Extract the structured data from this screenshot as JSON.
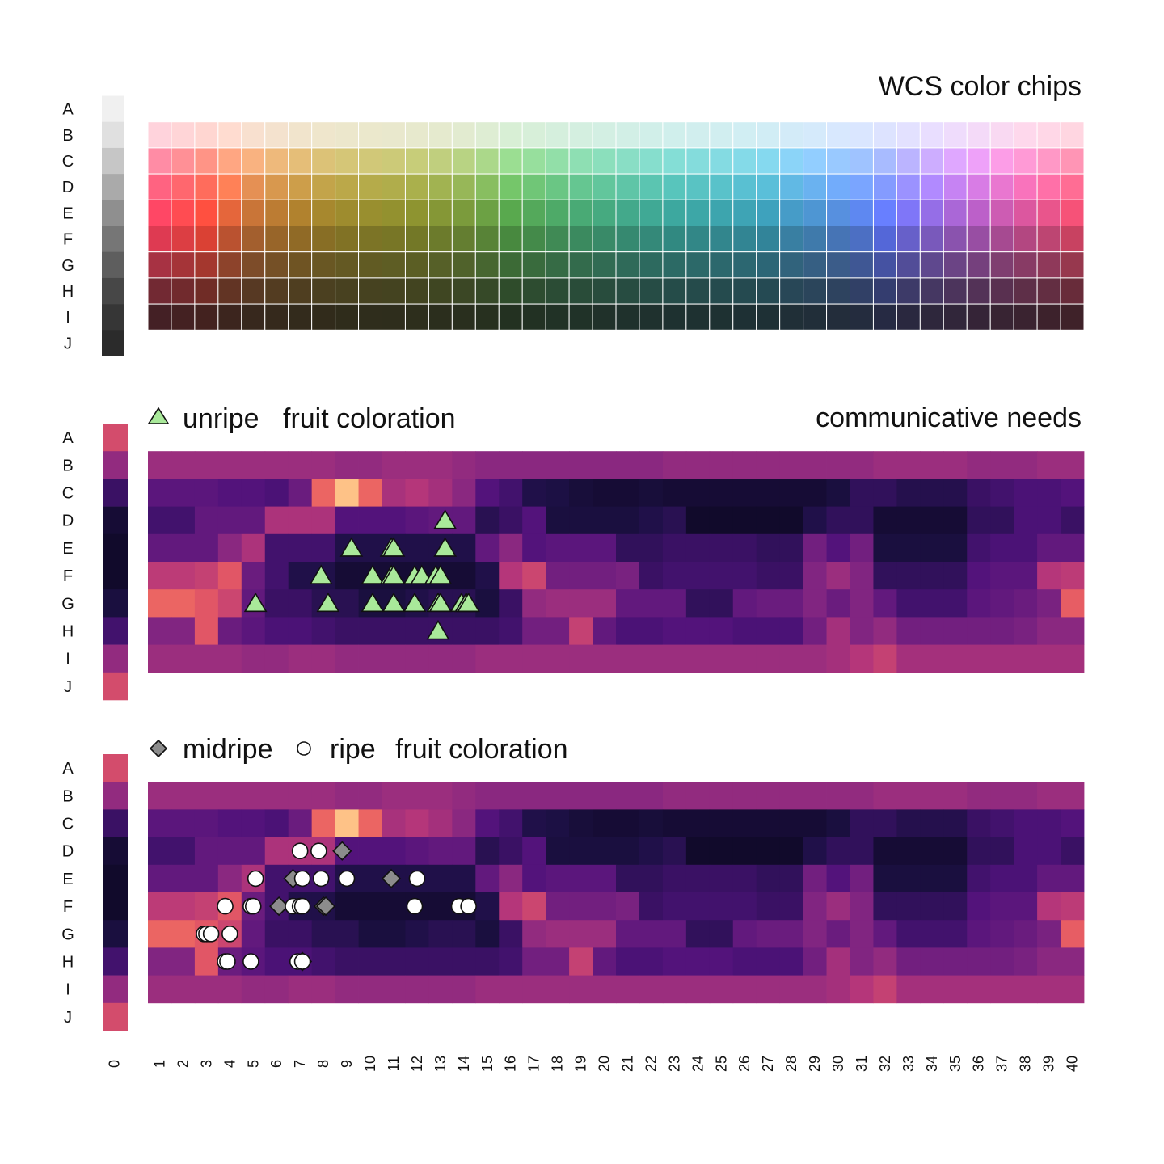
{
  "figure": {
    "panel_titles": {
      "chips": "WCS color chips",
      "needs": "communicative needs"
    },
    "legend_unripe": {
      "label_1": "unripe",
      "label_2": "fruit coloration",
      "marker": "triangle",
      "color": "#a9e99a"
    },
    "legend_ripe": {
      "label_1": "midripe",
      "label_2": "ripe",
      "label_3": "fruit coloration",
      "marker_midripe": "diamond",
      "marker_ripe": "circle",
      "midripe_color": "#8c8c8c",
      "ripe_color": "#ffffff"
    }
  },
  "chart_data": [
    {
      "id": "wcs_chips",
      "type": "heatmap",
      "title": "WCS color chips",
      "rows": [
        "A",
        "B",
        "C",
        "D",
        "E",
        "F",
        "G",
        "H",
        "I",
        "J"
      ],
      "columns": [
        "0",
        "1",
        "2",
        "3",
        "4",
        "5",
        "6",
        "7",
        "8",
        "9",
        "10",
        "11",
        "12",
        "13",
        "14",
        "15",
        "16",
        "17",
        "18",
        "19",
        "20",
        "21",
        "22",
        "23",
        "24",
        "25",
        "26",
        "27",
        "28",
        "29",
        "30",
        "31",
        "32",
        "33",
        "34",
        "35",
        "36",
        "37",
        "38",
        "39",
        "40"
      ],
      "achromatic_column": [
        "#f0f0f0",
        "#e0e0e0",
        "#c6c6c6",
        "#aaaaaa",
        "#8f8f8f",
        "#767676",
        "#5e5e5e",
        "#474747",
        "#363636",
        "#2b2b2b"
      ],
      "hue_stops_by_column": [
        [
          1,
          "#e8213e"
        ],
        [
          3,
          "#e52a1a"
        ],
        [
          5,
          "#e8701a"
        ],
        [
          7,
          "#f2a10f"
        ],
        [
          9,
          "#f2cd10"
        ],
        [
          12,
          "#c8d414"
        ],
        [
          14,
          "#8ec325"
        ],
        [
          16,
          "#45b136"
        ],
        [
          19,
          "#2fb06a"
        ],
        [
          23,
          "#1fb0a4"
        ],
        [
          27,
          "#1fa0c2"
        ],
        [
          30,
          "#3b80e0"
        ],
        [
          32,
          "#3a4ec8"
        ],
        [
          34,
          "#6a45b8"
        ],
        [
          36,
          "#a23fb0"
        ],
        [
          38,
          "#d53a8e"
        ],
        [
          40,
          "#e5305a"
        ]
      ],
      "lightness_by_row": {
        "B": 0.9,
        "C": 0.76,
        "D": 0.64,
        "E": 0.53,
        "F": 0.43,
        "G": 0.34,
        "H": 0.25,
        "I": 0.17
      },
      "chroma_by_row": {
        "B": 0.12,
        "C": 0.42,
        "D": 0.6,
        "E": 0.72,
        "F": 0.72,
        "G": 0.65,
        "H": 0.55,
        "I": 0.4
      }
    },
    {
      "id": "needs_unripe",
      "type": "heatmap",
      "title": "communicative needs",
      "colormap": "magma",
      "rows": [
        "A",
        "B",
        "C",
        "D",
        "E",
        "F",
        "G",
        "H",
        "I",
        "J"
      ],
      "columns": [
        "0",
        "1",
        "2",
        "3",
        "4",
        "5",
        "6",
        "7",
        "8",
        "9",
        "10",
        "11",
        "12",
        "13",
        "14",
        "15",
        "16",
        "17",
        "18",
        "19",
        "20",
        "21",
        "22",
        "23",
        "24",
        "25",
        "26",
        "27",
        "28",
        "29",
        "30",
        "31",
        "32",
        "33",
        "34",
        "35",
        "36",
        "37",
        "38",
        "39",
        "40"
      ],
      "achromatic_values": [
        0.58,
        0.42,
        0.2,
        0.1,
        0.08,
        0.08,
        0.12,
        0.22,
        0.42,
        0.58
      ],
      "values": {
        "B": [
          0.44,
          0.44,
          0.44,
          0.44,
          0.44,
          0.44,
          0.44,
          0.44,
          0.42,
          0.42,
          0.44,
          0.44,
          0.44,
          0.42,
          0.4,
          0.4,
          0.4,
          0.4,
          0.4,
          0.4,
          0.4,
          0.4,
          0.42,
          0.42,
          0.42,
          0.42,
          0.42,
          0.42,
          0.42,
          0.42,
          0.42,
          0.44,
          0.44,
          0.44,
          0.44,
          0.42,
          0.42,
          0.42,
          0.44,
          0.44
        ],
        "C": [
          0.28,
          0.28,
          0.28,
          0.26,
          0.26,
          0.24,
          0.32,
          0.66,
          0.88,
          0.66,
          0.47,
          0.5,
          0.46,
          0.4,
          0.26,
          0.22,
          0.14,
          0.13,
          0.11,
          0.1,
          0.1,
          0.11,
          0.1,
          0.1,
          0.1,
          0.1,
          0.1,
          0.1,
          0.1,
          0.12,
          0.18,
          0.18,
          0.15,
          0.15,
          0.15,
          0.2,
          0.22,
          0.24,
          0.24,
          0.26
        ],
        "D": [
          0.22,
          0.22,
          0.3,
          0.3,
          0.3,
          0.48,
          0.48,
          0.48,
          0.26,
          0.26,
          0.26,
          0.28,
          0.3,
          0.3,
          0.16,
          0.2,
          0.26,
          0.12,
          0.12,
          0.12,
          0.12,
          0.14,
          0.16,
          0.08,
          0.08,
          0.08,
          0.08,
          0.08,
          0.14,
          0.18,
          0.18,
          0.1,
          0.1,
          0.1,
          0.1,
          0.18,
          0.18,
          0.24,
          0.24,
          0.2
        ],
        "E": [
          0.3,
          0.3,
          0.3,
          0.4,
          0.48,
          0.22,
          0.22,
          0.22,
          0.14,
          0.14,
          0.14,
          0.14,
          0.14,
          0.14,
          0.3,
          0.4,
          0.26,
          0.28,
          0.28,
          0.28,
          0.18,
          0.18,
          0.2,
          0.2,
          0.2,
          0.2,
          0.18,
          0.18,
          0.34,
          0.26,
          0.34,
          0.12,
          0.12,
          0.12,
          0.12,
          0.22,
          0.24,
          0.24,
          0.3,
          0.3
        ],
        "F": [
          0.52,
          0.52,
          0.54,
          0.62,
          0.32,
          0.22,
          0.14,
          0.14,
          0.1,
          0.1,
          0.1,
          0.1,
          0.1,
          0.1,
          0.14,
          0.5,
          0.56,
          0.34,
          0.34,
          0.34,
          0.36,
          0.2,
          0.22,
          0.22,
          0.22,
          0.22,
          0.2,
          0.2,
          0.38,
          0.44,
          0.38,
          0.18,
          0.18,
          0.18,
          0.18,
          0.26,
          0.28,
          0.28,
          0.5,
          0.52
        ],
        "G": [
          0.66,
          0.66,
          0.62,
          0.56,
          0.3,
          0.2,
          0.2,
          0.16,
          0.16,
          0.12,
          0.12,
          0.14,
          0.16,
          0.16,
          0.12,
          0.2,
          0.42,
          0.44,
          0.44,
          0.44,
          0.3,
          0.3,
          0.3,
          0.18,
          0.18,
          0.3,
          0.32,
          0.32,
          0.38,
          0.32,
          0.38,
          0.3,
          0.22,
          0.22,
          0.22,
          0.28,
          0.3,
          0.32,
          0.36,
          0.64
        ],
        "H": [
          0.38,
          0.38,
          0.62,
          0.32,
          0.28,
          0.24,
          0.24,
          0.22,
          0.2,
          0.2,
          0.2,
          0.2,
          0.2,
          0.2,
          0.2,
          0.22,
          0.34,
          0.34,
          0.54,
          0.3,
          0.24,
          0.24,
          0.26,
          0.26,
          0.26,
          0.24,
          0.24,
          0.24,
          0.34,
          0.46,
          0.38,
          0.42,
          0.34,
          0.34,
          0.34,
          0.34,
          0.34,
          0.36,
          0.4,
          0.4
        ],
        "I": [
          0.44,
          0.44,
          0.44,
          0.44,
          0.42,
          0.42,
          0.44,
          0.44,
          0.42,
          0.42,
          0.42,
          0.42,
          0.42,
          0.42,
          0.44,
          0.44,
          0.44,
          0.44,
          0.44,
          0.44,
          0.44,
          0.44,
          0.44,
          0.44,
          0.44,
          0.44,
          0.44,
          0.44,
          0.44,
          0.46,
          0.5,
          0.54,
          0.46,
          0.46,
          0.46,
          0.46,
          0.46,
          0.46,
          0.46,
          0.46
        ]
      },
      "markers": {
        "unripe": [
          [
            5.1,
            "G"
          ],
          [
            7.9,
            "F"
          ],
          [
            8.2,
            "G"
          ],
          [
            9.2,
            "E"
          ],
          [
            10.1,
            "F"
          ],
          [
            10.1,
            "G"
          ],
          [
            10.9,
            "E"
          ],
          [
            11.0,
            "E"
          ],
          [
            10.9,
            "F"
          ],
          [
            11.0,
            "F"
          ],
          [
            11.0,
            "G"
          ],
          [
            11.9,
            "F"
          ],
          [
            11.9,
            "G"
          ],
          [
            12.2,
            "F"
          ],
          [
            12.8,
            "F"
          ],
          [
            12.9,
            "G"
          ],
          [
            12.9,
            "H"
          ],
          [
            13.0,
            "F"
          ],
          [
            13.0,
            "G"
          ],
          [
            13.2,
            "E"
          ],
          [
            13.2,
            "D"
          ],
          [
            13.9,
            "G"
          ],
          [
            14.1,
            "G"
          ],
          [
            14.1,
            "G"
          ],
          [
            14.2,
            "G"
          ]
        ]
      }
    },
    {
      "id": "needs_ripe",
      "type": "heatmap",
      "colormap": "magma",
      "rows": [
        "A",
        "B",
        "C",
        "D",
        "E",
        "F",
        "G",
        "H",
        "I",
        "J"
      ],
      "columns": [
        "0",
        "1",
        "2",
        "3",
        "4",
        "5",
        "6",
        "7",
        "8",
        "9",
        "10",
        "11",
        "12",
        "13",
        "14",
        "15",
        "16",
        "17",
        "18",
        "19",
        "20",
        "21",
        "22",
        "23",
        "24",
        "25",
        "26",
        "27",
        "28",
        "29",
        "30",
        "31",
        "32",
        "33",
        "34",
        "35",
        "36",
        "37",
        "38",
        "39",
        "40"
      ],
      "same_values_as": "needs_unripe",
      "markers": {
        "midripe": [
          [
            8.8,
            "D"
          ],
          [
            6.7,
            "E"
          ],
          [
            10.9,
            "E"
          ],
          [
            6.1,
            "F"
          ],
          [
            8.0,
            "F"
          ],
          [
            8.1,
            "F"
          ],
          [
            7.1,
            "H"
          ]
        ],
        "ripe": [
          [
            7.0,
            "D"
          ],
          [
            7.8,
            "D"
          ],
          [
            5.1,
            "E"
          ],
          [
            7.1,
            "E"
          ],
          [
            7.9,
            "E"
          ],
          [
            9.0,
            "E"
          ],
          [
            12.0,
            "E"
          ],
          [
            3.8,
            "F"
          ],
          [
            4.9,
            "F"
          ],
          [
            5.0,
            "F"
          ],
          [
            6.7,
            "F"
          ],
          [
            7.0,
            "F"
          ],
          [
            7.1,
            "F"
          ],
          [
            11.9,
            "F"
          ],
          [
            13.8,
            "F"
          ],
          [
            14.2,
            "F"
          ],
          [
            2.9,
            "G"
          ],
          [
            3.1,
            "G"
          ],
          [
            3.0,
            "G"
          ],
          [
            3.2,
            "G"
          ],
          [
            4.0,
            "G"
          ],
          [
            3.8,
            "H"
          ],
          [
            3.9,
            "H"
          ],
          [
            4.9,
            "H"
          ],
          [
            6.9,
            "H"
          ],
          [
            7.1,
            "H"
          ]
        ]
      }
    }
  ]
}
